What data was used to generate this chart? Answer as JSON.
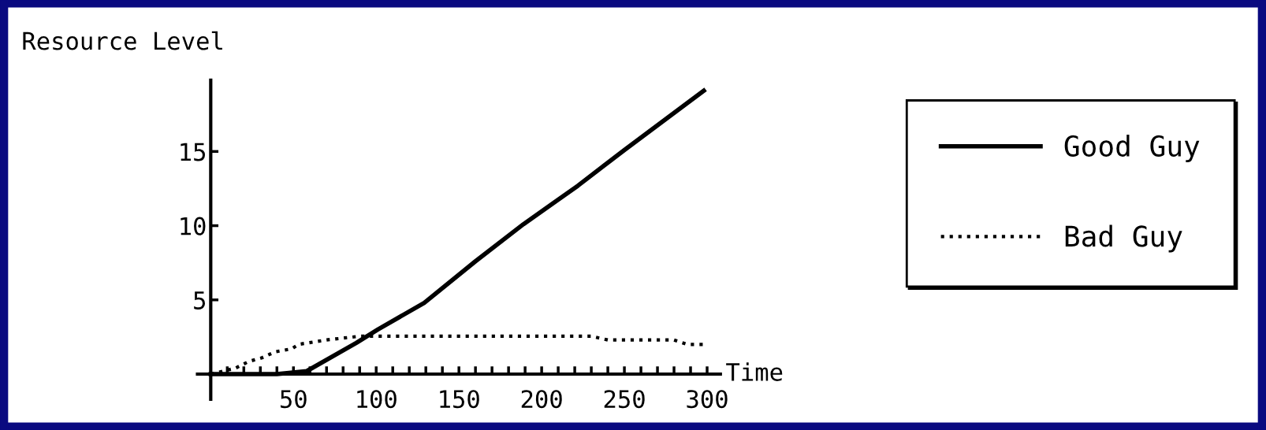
{
  "chart_data": {
    "type": "line",
    "title": "Resource Level",
    "xlabel": "Time",
    "series": [
      {
        "name": "Good Guy",
        "color": "#000000",
        "line_style": "solid",
        "x": [
          0,
          20,
          40,
          58,
          88,
          101,
          129,
          160,
          189,
          222,
          250,
          298
        ],
        "values": [
          0,
          0,
          0,
          0.2,
          2.1,
          3.0,
          4.8,
          7.6,
          10.1,
          12.7,
          15.1,
          19.1
        ]
      },
      {
        "name": "Bad Guy",
        "color": "#000000",
        "line_style": "dotted",
        "x": [
          0,
          15,
          23,
          31,
          39,
          49,
          53,
          70,
          90,
          110,
          150,
          190,
          230,
          240,
          280,
          288,
          298
        ],
        "values": [
          0,
          0.4,
          0.85,
          1.1,
          1.5,
          1.7,
          2.0,
          2.3,
          2.55,
          2.55,
          2.55,
          2.55,
          2.55,
          2.3,
          2.3,
          2.0,
          2.0
        ]
      }
    ],
    "xlim": [
      -8,
      308
    ],
    "ylim": [
      -1.7,
      19.8
    ],
    "xticks": [
      {
        "value": 10,
        "label": null
      },
      {
        "value": 20,
        "label": null
      },
      {
        "value": 30,
        "label": null
      },
      {
        "value": 40,
        "label": null
      },
      50,
      {
        "value": 60,
        "label": null
      },
      {
        "value": 70,
        "label": null
      },
      {
        "value": 80,
        "label": null
      },
      {
        "value": 90,
        "label": null
      },
      100,
      {
        "value": 110,
        "label": null
      },
      {
        "value": 120,
        "label": null
      },
      {
        "value": 130,
        "label": null
      },
      {
        "value": 140,
        "label": null
      },
      150,
      {
        "value": 160,
        "label": null
      },
      {
        "value": 170,
        "label": null
      },
      {
        "value": 180,
        "label": null
      },
      {
        "value": 190,
        "label": null
      },
      200,
      {
        "value": 210,
        "label": null
      },
      {
        "value": 220,
        "label": null
      },
      {
        "value": 230,
        "label": null
      },
      {
        "value": 240,
        "label": null
      },
      250,
      {
        "value": 260,
        "label": null
      },
      {
        "value": 270,
        "label": null
      },
      {
        "value": 280,
        "label": null
      },
      {
        "value": 290,
        "label": null
      },
      300
    ],
    "yticks": [
      5,
      10,
      15
    ],
    "grid": false,
    "legend": "right",
    "marker": "none"
  }
}
